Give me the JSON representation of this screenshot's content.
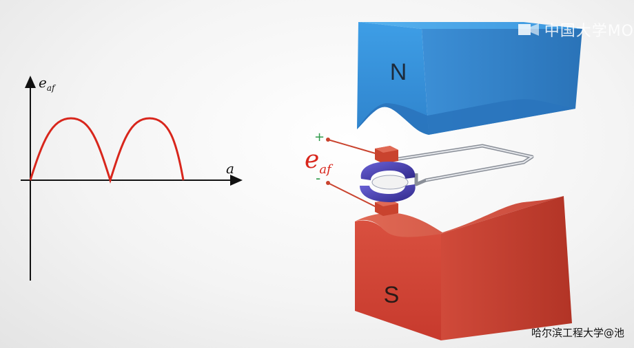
{
  "graph": {
    "y_label_main": "e",
    "y_label_sub": "af",
    "x_label": "a"
  },
  "motor": {
    "north_label": "N",
    "south_label": "S",
    "emf_label_main": "e",
    "emf_label_sub": "af",
    "plus_label": "+",
    "minus_label": "-"
  },
  "watermark_text": "中国大学MO",
  "credit_text": "哈尔滨工程大学@池",
  "colors": {
    "curve": "#d8261c",
    "axis": "#111111",
    "north_pole": "#3d94d9",
    "south_pole": "#d8473a",
    "commutator": "#4b3fa8",
    "brush": "#c9432e",
    "plus": "#2e9a4a",
    "minus": "#2e9a4a"
  }
}
